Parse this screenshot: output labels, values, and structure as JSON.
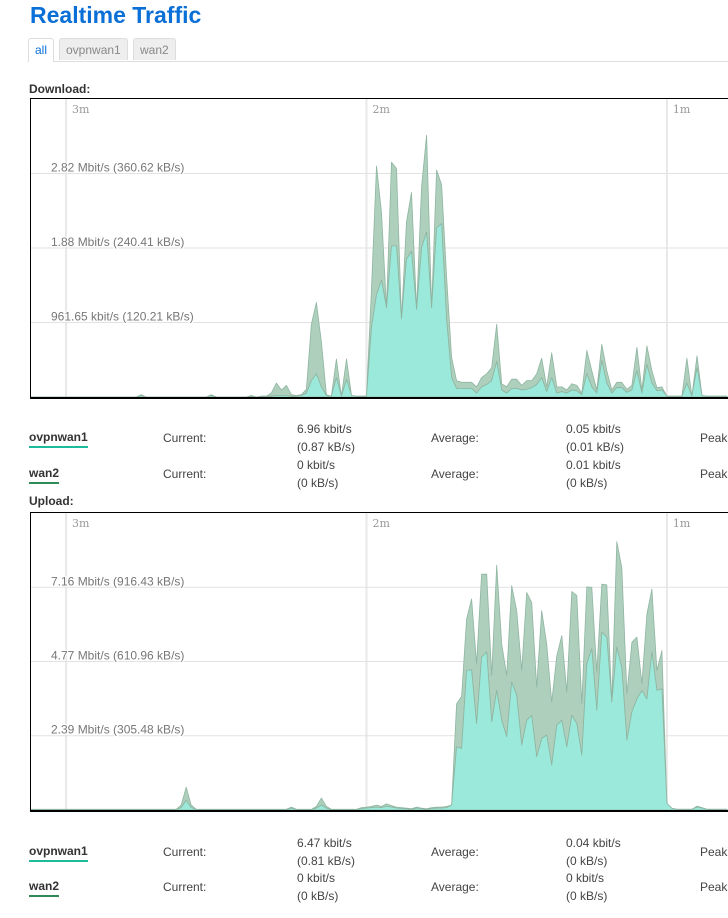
{
  "page_title": "Realtime Traffic",
  "tabs": [
    {
      "label": "all",
      "active": true
    },
    {
      "label": "ovpnwan1",
      "active": false
    },
    {
      "label": "wan2",
      "active": false
    }
  ],
  "colors": {
    "title": "#0a6fd6",
    "ovpnwan1": "#1abc9c",
    "ovpnwan1_fill": "#9be9da",
    "wan2": "#2e8b57",
    "wan2_fill": "#adcfbb"
  },
  "download": {
    "label": "Download:",
    "rows": [
      {
        "iface": "ovpnwan1",
        "current_label": "Current:",
        "current_kbit": "6.96 kbit/s",
        "current_kb": "(0.87 kB/s)",
        "average_label": "Average:",
        "average_kbit": "0.05 kbit/s",
        "average_kb": "(0.01 kB/s)",
        "peak_label": "Peak"
      },
      {
        "iface": "wan2",
        "current_label": "Current:",
        "current_kbit": "0 kbit/s",
        "current_kb": "(0 kB/s)",
        "average_label": "Average:",
        "average_kbit": "0.01 kbit/s",
        "average_kb": "(0 kB/s)",
        "peak_label": "Peak"
      }
    ]
  },
  "upload": {
    "label": "Upload:",
    "rows": [
      {
        "iface": "ovpnwan1",
        "current_label": "Current:",
        "current_kbit": "6.47 kbit/s",
        "current_kb": "(0.81 kB/s)",
        "average_label": "Average:",
        "average_kbit": "0.04 kbit/s",
        "average_kb": "(0 kB/s)",
        "peak_label": "Peak"
      },
      {
        "iface": "wan2",
        "current_label": "Current:",
        "current_kbit": "0 kbit/s",
        "current_kb": "(0 kB/s)",
        "average_label": "Average:",
        "average_kbit": "0 kbit/s",
        "average_kb": "(0 kB/s)",
        "peak_label": "Peak"
      }
    ]
  },
  "chart_data": [
    {
      "type": "area",
      "stacked": true,
      "title": "Download:",
      "x_unit": "seconds ago",
      "x_samples": {
        "start": 187,
        "end": 48,
        "step": 1
      },
      "xticks": [
        {
          "t": 180,
          "label": "3m"
        },
        {
          "t": 120,
          "label": "2m"
        },
        {
          "t": 60,
          "label": "1m"
        }
      ],
      "y_unit": "kB/s",
      "ylim": [
        0,
        480.83
      ],
      "gridlines": [
        {
          "value": 120.21,
          "label": "961.65 kbit/s (120.21 kB/s)"
        },
        {
          "value": 240.41,
          "label": "1.88 Mbit/s (240.41 kB/s)"
        },
        {
          "value": 360.62,
          "label": "2.82 Mbit/s (360.62 kB/s)"
        }
      ],
      "series_unit": "Mbit/s",
      "series": [
        {
          "name": "ovpnwan1",
          "values": [
            0,
            0,
            0,
            0,
            0,
            0,
            0,
            0,
            0,
            0,
            0,
            0,
            0,
            0,
            0,
            0,
            0,
            0,
            0,
            0,
            0,
            0,
            0.02,
            0,
            0,
            0,
            0,
            0,
            0,
            0,
            0,
            0,
            0,
            0,
            0,
            0,
            0.02,
            0,
            0,
            0,
            0,
            0,
            0,
            0,
            0.01,
            0,
            0.01,
            0.01,
            0.01,
            0.02,
            0.02,
            0.02,
            0.01,
            0.01,
            0.02,
            0.05,
            0.21,
            0.3,
            0.13,
            0.02,
            0.01,
            0.25,
            0.01,
            0.23,
            0.02,
            0.01,
            0.01,
            0.01,
            0.9,
            1.32,
            1.51,
            1.15,
            1.95,
            1.95,
            1.01,
            1.78,
            1.88,
            1.13,
            1.93,
            2.13,
            1.15,
            2.18,
            2.24,
            1.0,
            0.25,
            0.11,
            0.11,
            0.11,
            0.11,
            0.05,
            0.13,
            0.16,
            0.21,
            0.46,
            0.09,
            0.05,
            0.11,
            0.11,
            0.09,
            0.1,
            0.12,
            0.16,
            0.25,
            0.07,
            0.25,
            0.05,
            0.07,
            0.05,
            0.09,
            0.08,
            0.03,
            0.3,
            0.13,
            0.05,
            0.47,
            0.18,
            0.05,
            0.12,
            0.12,
            0.06,
            0.09,
            0.34,
            0.05,
            0.42,
            0.18,
            0.08,
            0.09,
            0.01,
            0.01,
            0.01,
            0.01,
            0.18,
            0.01,
            0.38,
            0.02,
            0.01,
            0.01,
            0.01,
            0.01,
            0.01
          ]
        },
        {
          "name": "wan2",
          "values": [
            0,
            0,
            0,
            0,
            0,
            0,
            0,
            0,
            0,
            0,
            0,
            0,
            0,
            0,
            0,
            0,
            0,
            0,
            0,
            0,
            0,
            0,
            0.01,
            0,
            0,
            0,
            0,
            0,
            0,
            0,
            0,
            0,
            0,
            0,
            0,
            0,
            0.01,
            0,
            0,
            0,
            0,
            0,
            0,
            0,
            0.01,
            0,
            0,
            0,
            0.04,
            0.16,
            0.07,
            0.13,
            0.02,
            0.01,
            0.01,
            0.05,
            0.73,
            0.92,
            0.58,
            0.01,
            0,
            0.24,
            0,
            0.26,
            0,
            0,
            0,
            0,
            0.5,
            1.66,
            0.87,
            0,
            1.08,
            1.0,
            0,
            0.48,
            0.76,
            0,
            0.79,
            1.25,
            0,
            0.75,
            0.5,
            0.55,
            0.26,
            0.1,
            0.08,
            0.08,
            0.08,
            0.08,
            0.12,
            0.14,
            0.17,
            0.48,
            0.08,
            0.08,
            0.12,
            0.12,
            0.06,
            0.11,
            0.09,
            0.14,
            0.25,
            0.06,
            0.32,
            0.08,
            0.06,
            0.04,
            0.08,
            0.07,
            0.02,
            0.3,
            0.21,
            0.04,
            0.21,
            0.16,
            0.04,
            0.07,
            0.07,
            0.04,
            0.06,
            0.3,
            0.04,
            0.24,
            0.16,
            0.04,
            0.04,
            0,
            0,
            0,
            0,
            0.32,
            0,
            0.15,
            0,
            0,
            0,
            0,
            0,
            0
          ]
        }
      ]
    },
    {
      "type": "area",
      "stacked": true,
      "title": "Upload:",
      "x_unit": "seconds ago",
      "x_samples": {
        "start": 187,
        "end": 48,
        "step": 1
      },
      "xticks": [
        {
          "t": 180,
          "label": "3m"
        },
        {
          "t": 120,
          "label": "2m"
        },
        {
          "t": 60,
          "label": "1m"
        }
      ],
      "y_unit": "kB/s",
      "ylim": [
        0,
        1221.91
      ],
      "gridlines": [
        {
          "value": 305.48,
          "label": "2.39 Mbit/s (305.48 kB/s)"
        },
        {
          "value": 610.96,
          "label": "4.77 Mbit/s (610.96 kB/s)"
        },
        {
          "value": 916.43,
          "label": "7.16 Mbit/s (916.43 kB/s)"
        }
      ],
      "series_unit": "kB/s",
      "series": [
        {
          "name": "ovpnwan1",
          "values": [
            2,
            2,
            2,
            2,
            2,
            2,
            2,
            2,
            2,
            2,
            2,
            2,
            2,
            2,
            2,
            2,
            2,
            2,
            2,
            2,
            2,
            2,
            2,
            2,
            2,
            2,
            2,
            2,
            2,
            2,
            10,
            40,
            10,
            2,
            2,
            2,
            2,
            2,
            2,
            2,
            2,
            2,
            2,
            2,
            2,
            2,
            2,
            2,
            2,
            2,
            2,
            2,
            8,
            2,
            2,
            2,
            2,
            8,
            20,
            8,
            2,
            2,
            2,
            2,
            2,
            2,
            6,
            8,
            10,
            12,
            10,
            15,
            12,
            8,
            6,
            5,
            3,
            8,
            5,
            3,
            6,
            8,
            8,
            10,
            20,
            260,
            253,
            574,
            577,
            355,
            629,
            650,
            362,
            492,
            369,
            301,
            526,
            472,
            267,
            369,
            389,
            219,
            294,
            308,
            185,
            349,
            369,
            260,
            389,
            355,
            226,
            601,
            663,
            410,
            731,
            711,
            444,
            670,
            585,
            287,
            403,
            457,
            492,
            457,
            650,
            492,
            499,
            27,
            7,
            3,
            3,
            3,
            3,
            12,
            8,
            3,
            3,
            3,
            3,
            3
          ]
        },
        {
          "name": "wan2",
          "values": [
            1,
            1,
            1,
            1,
            1,
            1,
            1,
            1,
            1,
            1,
            1,
            1,
            1,
            1,
            1,
            1,
            1,
            1,
            1,
            1,
            1,
            1,
            1,
            1,
            1,
            1,
            1,
            1,
            1,
            1,
            10,
            54,
            10,
            1,
            1,
            1,
            1,
            1,
            1,
            1,
            1,
            1,
            1,
            1,
            1,
            1,
            1,
            1,
            1,
            1,
            1,
            1,
            4,
            1,
            1,
            1,
            1,
            7,
            29,
            7,
            1,
            1,
            1,
            1,
            1,
            1,
            4,
            4,
            5,
            8,
            5,
            10,
            6,
            4,
            4,
            3,
            2,
            4,
            3,
            2,
            4,
            4,
            4,
            5,
            0,
            177,
            214,
            212,
            291,
            246,
            341,
            320,
            191,
            515,
            314,
            252,
            397,
            348,
            307,
            526,
            465,
            287,
            526,
            375,
            259,
            286,
            348,
            225,
            510,
            527,
            211,
            317,
            253,
            157,
            198,
            215,
            0,
            434,
            413,
            191,
            287,
            254,
            27,
            349,
            259,
            82,
            157,
            0,
            0,
            0,
            0,
            0,
            0,
            4,
            2,
            0,
            0,
            0,
            0,
            0
          ]
        }
      ]
    }
  ]
}
